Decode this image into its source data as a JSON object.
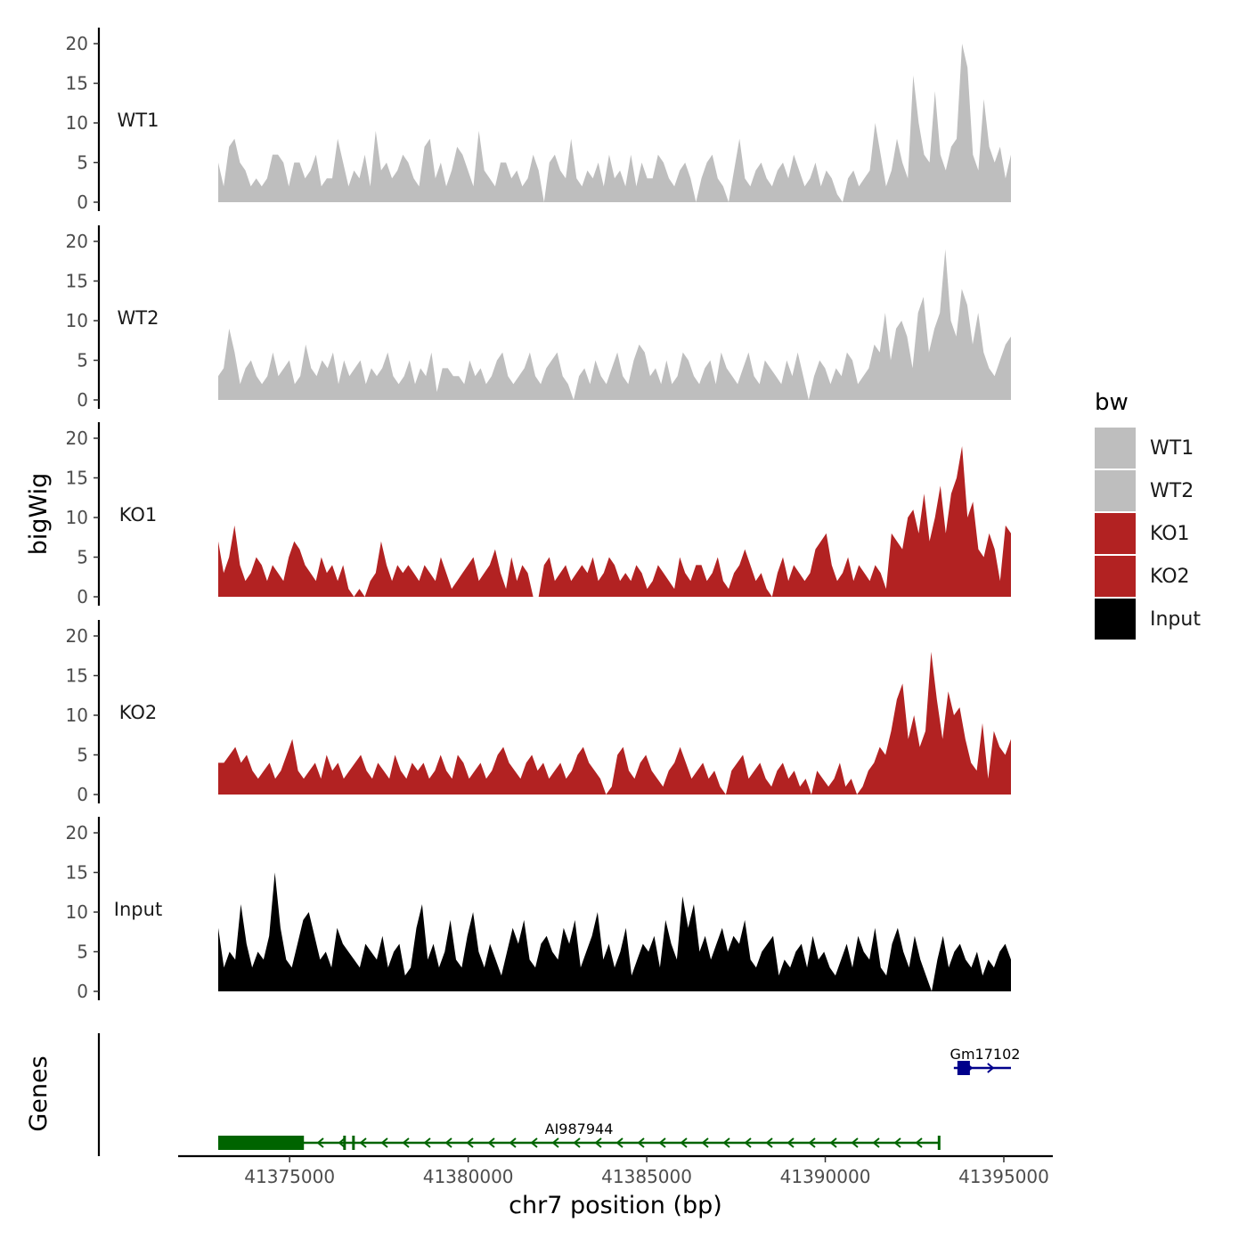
{
  "chart_data": {
    "type": "area",
    "title": "",
    "ylabel": "bigWig",
    "xlabel": "chr7 position (bp)",
    "xlim": [
      41371300,
      41396300
    ],
    "ylim": [
      0,
      21
    ],
    "x_ticks": [
      41375000,
      41380000,
      41385000,
      41390000,
      41395000
    ],
    "x_tick_labels": [
      "41375000",
      "41380000",
      "41385000",
      "41390000",
      "41395000"
    ],
    "y_ticks": [
      0,
      5,
      10,
      15,
      20
    ],
    "y_tick_labels": [
      "0",
      "5",
      "10",
      "15",
      "20"
    ],
    "legend": {
      "title": "bw",
      "position": "right",
      "entries": [
        {
          "label": "WT1",
          "color": "#bebebe"
        },
        {
          "label": "WT2",
          "color": "#bebebe"
        },
        {
          "label": "KO1",
          "color": "#b22222"
        },
        {
          "label": "KO2",
          "color": "#b22222"
        },
        {
          "label": "Input",
          "color": "#000000"
        }
      ]
    },
    "tracks": [
      {
        "name": "WT1",
        "color": "#bebebe",
        "x_start": 41373000,
        "x_end": 41395200,
        "values": [
          5,
          2,
          7,
          8,
          5,
          4,
          2,
          3,
          2,
          3,
          6,
          6,
          5,
          2,
          5,
          5,
          3,
          4,
          6,
          2,
          3,
          3,
          8,
          5,
          2,
          4,
          3,
          6,
          2,
          9,
          4,
          5,
          3,
          4,
          6,
          5,
          3,
          2,
          7,
          8,
          3,
          5,
          2,
          4,
          7,
          6,
          4,
          2,
          9,
          4,
          3,
          2,
          5,
          5,
          3,
          4,
          2,
          3,
          6,
          4,
          0,
          5,
          6,
          4,
          3,
          8,
          3,
          2,
          4,
          3,
          5,
          2,
          6,
          3,
          4,
          2,
          6,
          2,
          5,
          3,
          3,
          6,
          5,
          3,
          2,
          4,
          5,
          3,
          0,
          3,
          5,
          6,
          3,
          2,
          0,
          4,
          8,
          3,
          2,
          4,
          5,
          3,
          2,
          4,
          5,
          3,
          6,
          4,
          2,
          3,
          5,
          2,
          4,
          3,
          1,
          0,
          3,
          4,
          2,
          3,
          4,
          10,
          6,
          2,
          4,
          8,
          5,
          3,
          16,
          10,
          6,
          5,
          14,
          6,
          4,
          7,
          8,
          20,
          17,
          6,
          4,
          13,
          7,
          5,
          7,
          3,
          6
        ]
      },
      {
        "name": "WT2",
        "color": "#bebebe",
        "x_start": 41373000,
        "x_end": 41395200,
        "values": [
          3,
          4,
          9,
          6,
          2,
          4,
          5,
          3,
          2,
          3,
          6,
          3,
          4,
          5,
          2,
          3,
          7,
          4,
          3,
          5,
          4,
          6,
          2,
          5,
          3,
          4,
          5,
          2,
          4,
          3,
          4,
          6,
          3,
          2,
          3,
          5,
          2,
          4,
          3,
          6,
          1,
          4,
          4,
          3,
          3,
          2,
          5,
          3,
          4,
          2,
          3,
          5,
          6,
          3,
          2,
          3,
          4,
          6,
          3,
          2,
          4,
          5,
          6,
          3,
          2,
          0,
          3,
          4,
          2,
          5,
          3,
          2,
          4,
          6,
          3,
          2,
          5,
          7,
          6,
          3,
          4,
          2,
          5,
          2,
          3,
          6,
          5,
          3,
          2,
          4,
          5,
          2,
          6,
          4,
          3,
          2,
          4,
          6,
          3,
          2,
          5,
          4,
          3,
          2,
          5,
          3,
          6,
          3,
          0,
          3,
          5,
          4,
          2,
          4,
          3,
          6,
          5,
          2,
          3,
          4,
          7,
          6,
          11,
          5,
          9,
          10,
          8,
          4,
          11,
          13,
          6,
          9,
          11,
          19,
          10,
          8,
          14,
          12,
          7,
          11,
          6,
          4,
          3,
          5,
          7,
          8
        ]
      },
      {
        "name": "KO1",
        "color": "#b22222",
        "x_start": 41373000,
        "x_end": 41395200,
        "values": [
          7,
          3,
          5,
          9,
          4,
          2,
          3,
          5,
          4,
          2,
          4,
          3,
          2,
          5,
          7,
          6,
          4,
          3,
          2,
          5,
          3,
          4,
          2,
          4,
          1,
          0,
          1,
          0,
          2,
          3,
          7,
          4,
          2,
          4,
          3,
          4,
          3,
          2,
          4,
          3,
          2,
          5,
          3,
          1,
          2,
          3,
          4,
          5,
          2,
          3,
          4,
          6,
          3,
          1,
          5,
          2,
          4,
          3,
          0,
          0,
          4,
          5,
          2,
          3,
          4,
          2,
          3,
          4,
          3,
          5,
          2,
          3,
          5,
          4,
          2,
          3,
          2,
          4,
          3,
          1,
          2,
          4,
          3,
          2,
          1,
          5,
          3,
          2,
          4,
          4,
          2,
          3,
          5,
          2,
          1,
          3,
          4,
          6,
          4,
          2,
          3,
          1,
          0,
          3,
          5,
          2,
          4,
          3,
          2,
          3,
          6,
          7,
          8,
          4,
          2,
          3,
          5,
          2,
          4,
          3,
          2,
          4,
          3,
          1,
          8,
          7,
          6,
          10,
          11,
          8,
          13,
          7,
          10,
          14,
          8,
          13,
          15,
          19,
          10,
          12,
          6,
          5,
          8,
          6,
          2,
          9,
          8
        ]
      },
      {
        "name": "KO2",
        "color": "#b22222",
        "x_start": 41373000,
        "x_end": 41395200,
        "values": [
          4,
          4,
          5,
          6,
          4,
          5,
          3,
          2,
          3,
          4,
          2,
          3,
          5,
          7,
          3,
          2,
          3,
          4,
          2,
          5,
          3,
          4,
          2,
          3,
          4,
          5,
          3,
          2,
          4,
          3,
          2,
          5,
          3,
          2,
          4,
          3,
          4,
          2,
          3,
          5,
          3,
          2,
          5,
          4,
          2,
          3,
          4,
          2,
          3,
          5,
          6,
          4,
          3,
          2,
          4,
          5,
          3,
          4,
          2,
          3,
          4,
          2,
          3,
          5,
          6,
          4,
          3,
          2,
          0,
          1,
          5,
          6,
          3,
          2,
          4,
          5,
          3,
          2,
          1,
          3,
          4,
          6,
          4,
          2,
          3,
          4,
          2,
          3,
          1,
          0,
          3,
          4,
          5,
          2,
          3,
          4,
          2,
          1,
          3,
          4,
          2,
          3,
          1,
          2,
          0,
          3,
          2,
          1,
          2,
          4,
          1,
          2,
          0,
          1,
          3,
          4,
          6,
          5,
          8,
          12,
          14,
          7,
          10,
          6,
          8,
          18,
          12,
          7,
          13,
          10,
          11,
          7,
          4,
          3,
          9,
          2,
          8,
          6,
          5,
          7
        ]
      },
      {
        "name": "Input",
        "color": "#000000",
        "x_start": 41373000,
        "x_end": 41395200,
        "values": [
          8,
          3,
          5,
          4,
          11,
          6,
          3,
          5,
          4,
          7,
          15,
          8,
          4,
          3,
          6,
          9,
          10,
          7,
          4,
          5,
          3,
          8,
          6,
          5,
          4,
          3,
          6,
          5,
          4,
          7,
          3,
          5,
          6,
          2,
          3,
          8,
          11,
          4,
          6,
          3,
          5,
          9,
          4,
          3,
          7,
          10,
          5,
          3,
          6,
          4,
          2,
          5,
          8,
          6,
          9,
          4,
          3,
          6,
          7,
          5,
          4,
          8,
          6,
          9,
          3,
          5,
          7,
          10,
          4,
          6,
          3,
          5,
          8,
          2,
          4,
          6,
          5,
          7,
          3,
          9,
          6,
          4,
          12,
          8,
          11,
          5,
          7,
          4,
          6,
          8,
          5,
          7,
          6,
          9,
          4,
          3,
          5,
          6,
          7,
          2,
          4,
          3,
          5,
          6,
          3,
          7,
          4,
          5,
          3,
          2,
          4,
          6,
          3,
          7,
          5,
          4,
          8,
          3,
          2,
          6,
          8,
          5,
          3,
          7,
          4,
          2,
          0,
          4,
          7,
          3,
          5,
          6,
          4,
          3,
          5,
          2,
          4,
          3,
          5,
          6,
          4
        ]
      }
    ],
    "genes": [
      {
        "name": "AI987944",
        "color": "#006400",
        "strand": "-",
        "start": 41373000,
        "end": 41393200,
        "exons": [
          [
            41373000,
            41375400
          ],
          [
            41376500,
            41376560
          ],
          [
            41376750,
            41376800
          ],
          [
            41393150,
            41393200
          ]
        ]
      },
      {
        "name": "Gm17102",
        "color": "#00008b",
        "strand": "+",
        "start": 41393600,
        "end": 41395200,
        "exons": [
          [
            41393700,
            41394050
          ]
        ]
      }
    ],
    "genes_panel_label": "Genes"
  }
}
